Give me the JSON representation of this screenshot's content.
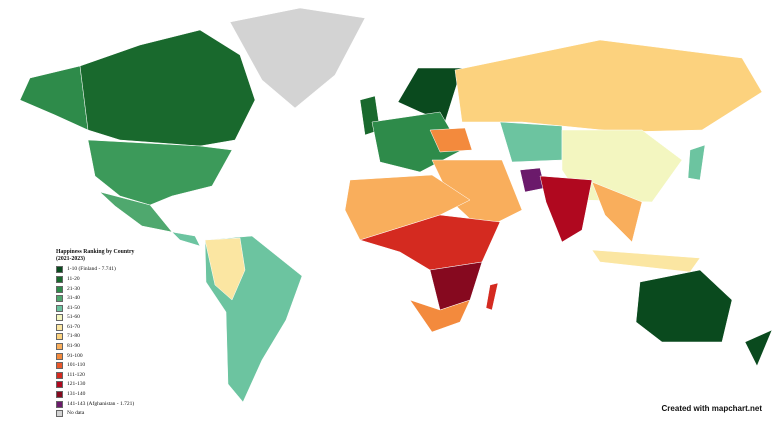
{
  "legend": {
    "title": "Happiness Ranking by Country (2021-2023)",
    "items": [
      {
        "label": "1-10 (Finland - 7.741)",
        "color": "#0a4a1e"
      },
      {
        "label": "11-20",
        "color": "#19692d"
      },
      {
        "label": "21-30",
        "color": "#2e8b4a"
      },
      {
        "label": "31-40",
        "color": "#4fa86e"
      },
      {
        "label": "41-50",
        "color": "#6cc4a0"
      },
      {
        "label": "51-60",
        "color": "#f3f6c0"
      },
      {
        "label": "61-70",
        "color": "#fbe6a2"
      },
      {
        "label": "71-80",
        "color": "#fcd27e"
      },
      {
        "label": "81-90",
        "color": "#f9ae5c"
      },
      {
        "label": "91-100",
        "color": "#f38a3d"
      },
      {
        "label": "101-110",
        "color": "#e8572b"
      },
      {
        "label": "111-120",
        "color": "#d42a20"
      },
      {
        "label": "121-130",
        "color": "#b0081f"
      },
      {
        "label": "131-140",
        "color": "#86091f"
      },
      {
        "label": "141-143 (Afghanistan - 1.721)",
        "color": "#6b1a6b"
      },
      {
        "label": "No data",
        "color": "#d3d3d3"
      }
    ]
  },
  "credit": "Created with mapchart.net"
}
